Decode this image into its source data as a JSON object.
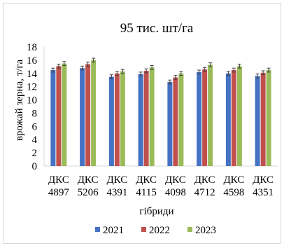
{
  "chart_data": {
    "type": "bar",
    "title": "95 тис. шт/га",
    "xlabel": "гібриди",
    "ylabel": "врожай зерна, т/га",
    "ylim": [
      0,
      18
    ],
    "yticks": [
      0,
      2,
      4,
      6,
      8,
      10,
      12,
      14,
      16,
      18
    ],
    "grid": false,
    "legend_position": "bottom",
    "error_bars": true,
    "error": 0.3,
    "categories": [
      [
        "ДКС",
        "4897"
      ],
      [
        "ДКС",
        "5206"
      ],
      [
        "ДКС",
        "4391"
      ],
      [
        "ДКС",
        "4115"
      ],
      [
        "ДКС",
        "4098"
      ],
      [
        "ДКС",
        "4712"
      ],
      [
        "ДКС",
        "4598"
      ],
      [
        "ДКС",
        "4351"
      ]
    ],
    "series": [
      {
        "name": "2021",
        "color": "#4472c4",
        "values": [
          14.5,
          14.8,
          13.5,
          13.9,
          12.7,
          14.2,
          14.0,
          13.6
        ]
      },
      {
        "name": "2022",
        "color": "#c0504d",
        "values": [
          15.1,
          15.4,
          14.0,
          14.4,
          13.4,
          14.6,
          14.5,
          14.1
        ]
      },
      {
        "name": "2023",
        "color": "#9bbb59",
        "values": [
          15.5,
          16.0,
          14.3,
          14.9,
          14.0,
          15.3,
          15.1,
          14.5
        ]
      }
    ]
  }
}
